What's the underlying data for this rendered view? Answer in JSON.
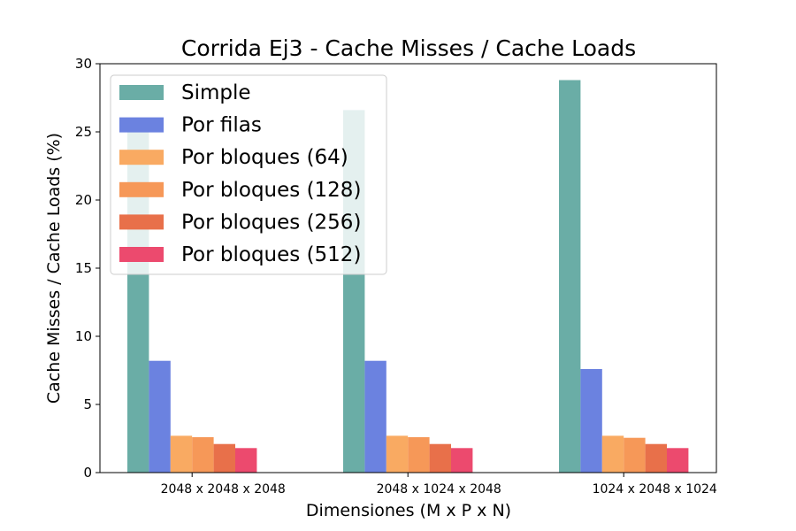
{
  "chart_data": {
    "type": "bar",
    "title": "Corrida Ej3 - Cache Misses / Cache Loads",
    "xlabel": "Dimensiones (M x P x N)",
    "ylabel": "Cache Misses / Cache Loads (%)",
    "ylim": [
      0,
      30
    ],
    "yticks": [
      "0",
      "5",
      "10",
      "15",
      "20",
      "25",
      "30"
    ],
    "categories": [
      "2048 x 2048 x 2048",
      "2048 x 1024 x 2048",
      "1024 x 2048 x 1024"
    ],
    "grid": false,
    "legend_position": "top-left",
    "series": [
      {
        "name": "Simple",
        "color": "#6aada6",
        "values": [
          25.6,
          26.6,
          28.8
        ]
      },
      {
        "name": "Por filas",
        "color": "#6b82e0",
        "values": [
          8.2,
          8.2,
          7.6
        ]
      },
      {
        "name": "Por bloques (64)",
        "color": "#f9aa62",
        "values": [
          2.7,
          2.7,
          2.7
        ]
      },
      {
        "name": "Por bloques (128)",
        "color": "#f69858",
        "values": [
          2.6,
          2.6,
          2.55
        ]
      },
      {
        "name": "Por bloques (256)",
        "color": "#e8704a",
        "values": [
          2.1,
          2.1,
          2.1
        ]
      },
      {
        "name": "Por bloques (512)",
        "color": "#ec4a6e",
        "values": [
          1.8,
          1.8,
          1.8
        ]
      }
    ]
  }
}
